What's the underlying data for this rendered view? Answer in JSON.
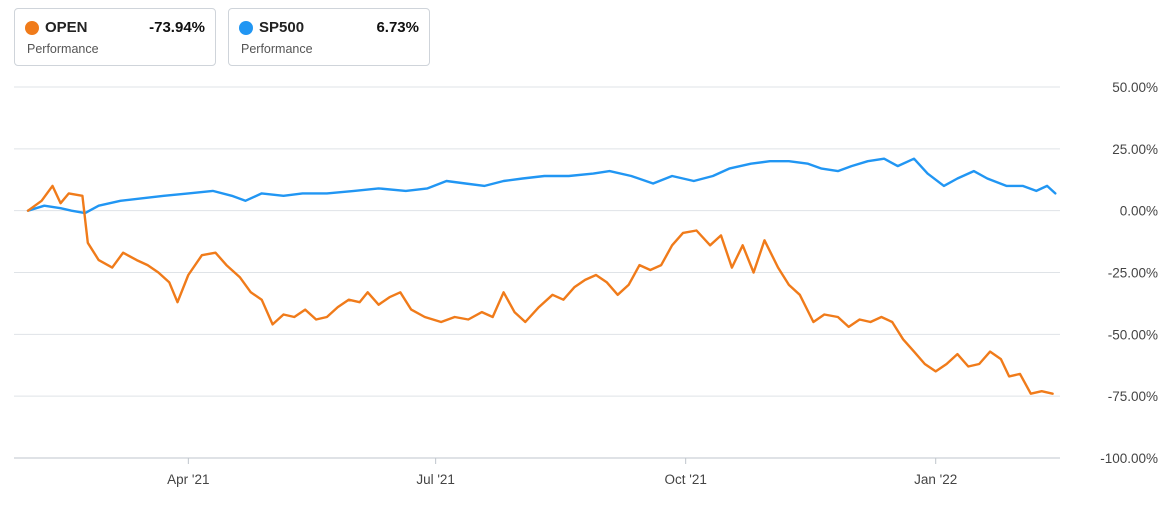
{
  "legend": [
    {
      "name": "OPEN",
      "value": "-73.94%",
      "subtitle": "Performance",
      "color": "#f07b1a"
    },
    {
      "name": "SP500",
      "value": "6.73%",
      "subtitle": "Performance",
      "color": "#2196f3"
    }
  ],
  "chart_data": {
    "type": "line",
    "title": "",
    "xlabel": "",
    "ylabel": "",
    "y_axis_position": "right",
    "ylim": [
      -100,
      50
    ],
    "y_ticks": [
      50,
      25,
      0,
      -25,
      -50,
      -75,
      -100
    ],
    "y_tick_labels": [
      "50.00%",
      "25.00%",
      "0.00%",
      "-25.00%",
      "-50.00%",
      "-75.00%",
      "-100.00%"
    ],
    "x_range": [
      "2021-02-01",
      "2022-02-15"
    ],
    "x_ticks": [
      "2021-04-01",
      "2021-07-01",
      "2021-10-01",
      "2022-01-01"
    ],
    "x_tick_labels": [
      "Apr '21",
      "Jul '21",
      "Oct '21",
      "Jan '22"
    ],
    "grid": true,
    "series": [
      {
        "name": "OPEN",
        "color": "#f07b1a",
        "points": [
          [
            "2021-02-01",
            0
          ],
          [
            "2021-02-06",
            4
          ],
          [
            "2021-02-10",
            10
          ],
          [
            "2021-02-13",
            3
          ],
          [
            "2021-02-16",
            7
          ],
          [
            "2021-02-21",
            6
          ],
          [
            "2021-02-23",
            -13
          ],
          [
            "2021-02-27",
            -20
          ],
          [
            "2021-03-04",
            -23
          ],
          [
            "2021-03-08",
            -17
          ],
          [
            "2021-03-13",
            -20
          ],
          [
            "2021-03-17",
            -22
          ],
          [
            "2021-03-21",
            -25
          ],
          [
            "2021-03-25",
            -29
          ],
          [
            "2021-03-28",
            -37
          ],
          [
            "2021-04-01",
            -26
          ],
          [
            "2021-04-06",
            -18
          ],
          [
            "2021-04-11",
            -17
          ],
          [
            "2021-04-15",
            -22
          ],
          [
            "2021-04-20",
            -27
          ],
          [
            "2021-04-24",
            -33
          ],
          [
            "2021-04-28",
            -36
          ],
          [
            "2021-05-02",
            -46
          ],
          [
            "2021-05-06",
            -42
          ],
          [
            "2021-05-10",
            -43
          ],
          [
            "2021-05-14",
            -40
          ],
          [
            "2021-05-18",
            -44
          ],
          [
            "2021-05-22",
            -43
          ],
          [
            "2021-05-26",
            -39
          ],
          [
            "2021-05-30",
            -36
          ],
          [
            "2021-06-03",
            -37
          ],
          [
            "2021-06-06",
            -33
          ],
          [
            "2021-06-10",
            -38
          ],
          [
            "2021-06-14",
            -35
          ],
          [
            "2021-06-18",
            -33
          ],
          [
            "2021-06-22",
            -40
          ],
          [
            "2021-06-27",
            -43
          ],
          [
            "2021-07-03",
            -45
          ],
          [
            "2021-07-08",
            -43
          ],
          [
            "2021-07-13",
            -44
          ],
          [
            "2021-07-18",
            -41
          ],
          [
            "2021-07-22",
            -43
          ],
          [
            "2021-07-26",
            -33
          ],
          [
            "2021-07-30",
            -41
          ],
          [
            "2021-08-03",
            -45
          ],
          [
            "2021-08-08",
            -39
          ],
          [
            "2021-08-13",
            -34
          ],
          [
            "2021-08-17",
            -36
          ],
          [
            "2021-08-21",
            -31
          ],
          [
            "2021-08-25",
            -28
          ],
          [
            "2021-08-29",
            -26
          ],
          [
            "2021-09-02",
            -29
          ],
          [
            "2021-09-06",
            -34
          ],
          [
            "2021-09-10",
            -30
          ],
          [
            "2021-09-14",
            -22
          ],
          [
            "2021-09-18",
            -24
          ],
          [
            "2021-09-22",
            -22
          ],
          [
            "2021-09-26",
            -14
          ],
          [
            "2021-09-30",
            -9
          ],
          [
            "2021-10-05",
            -8
          ],
          [
            "2021-10-10",
            -14
          ],
          [
            "2021-10-14",
            -10
          ],
          [
            "2021-10-18",
            -23
          ],
          [
            "2021-10-22",
            -14
          ],
          [
            "2021-10-26",
            -25
          ],
          [
            "2021-10-30",
            -12
          ],
          [
            "2021-11-04",
            -23
          ],
          [
            "2021-11-08",
            -30
          ],
          [
            "2021-11-12",
            -34
          ],
          [
            "2021-11-17",
            -45
          ],
          [
            "2021-11-21",
            -42
          ],
          [
            "2021-11-26",
            -43
          ],
          [
            "2021-11-30",
            -47
          ],
          [
            "2021-12-04",
            -44
          ],
          [
            "2021-12-08",
            -45
          ],
          [
            "2021-12-12",
            -43
          ],
          [
            "2021-12-16",
            -45
          ],
          [
            "2021-12-20",
            -52
          ],
          [
            "2021-12-24",
            -57
          ],
          [
            "2021-12-28",
            -62
          ],
          [
            "2022-01-01",
            -65
          ],
          [
            "2022-01-05",
            -62
          ],
          [
            "2022-01-09",
            -58
          ],
          [
            "2022-01-13",
            -63
          ],
          [
            "2022-01-17",
            -62
          ],
          [
            "2022-01-21",
            -57
          ],
          [
            "2022-01-25",
            -60
          ],
          [
            "2022-01-28",
            -67
          ],
          [
            "2022-02-01",
            -66
          ],
          [
            "2022-02-05",
            -74
          ],
          [
            "2022-02-09",
            -73
          ],
          [
            "2022-02-13",
            -74
          ]
        ]
      },
      {
        "name": "SP500",
        "color": "#2196f3",
        "points": [
          [
            "2021-02-01",
            0
          ],
          [
            "2021-02-07",
            2
          ],
          [
            "2021-02-13",
            1
          ],
          [
            "2021-02-17",
            0
          ],
          [
            "2021-02-22",
            -1
          ],
          [
            "2021-02-27",
            2
          ],
          [
            "2021-03-07",
            4
          ],
          [
            "2021-03-15",
            5
          ],
          [
            "2021-03-23",
            6
          ],
          [
            "2021-04-01",
            7
          ],
          [
            "2021-04-10",
            8
          ],
          [
            "2021-04-17",
            6
          ],
          [
            "2021-04-22",
            4
          ],
          [
            "2021-04-28",
            7
          ],
          [
            "2021-05-06",
            6
          ],
          [
            "2021-05-13",
            7
          ],
          [
            "2021-05-22",
            7
          ],
          [
            "2021-06-01",
            8
          ],
          [
            "2021-06-10",
            9
          ],
          [
            "2021-06-20",
            8
          ],
          [
            "2021-06-28",
            9
          ],
          [
            "2021-07-05",
            12
          ],
          [
            "2021-07-12",
            11
          ],
          [
            "2021-07-19",
            10
          ],
          [
            "2021-07-26",
            12
          ],
          [
            "2021-08-02",
            13
          ],
          [
            "2021-08-10",
            14
          ],
          [
            "2021-08-19",
            14
          ],
          [
            "2021-08-28",
            15
          ],
          [
            "2021-09-03",
            16
          ],
          [
            "2021-09-11",
            14
          ],
          [
            "2021-09-19",
            11
          ],
          [
            "2021-09-26",
            14
          ],
          [
            "2021-10-04",
            12
          ],
          [
            "2021-10-11",
            14
          ],
          [
            "2021-10-17",
            17
          ],
          [
            "2021-10-25",
            19
          ],
          [
            "2021-11-01",
            20
          ],
          [
            "2021-11-08",
            20
          ],
          [
            "2021-11-15",
            19
          ],
          [
            "2021-11-20",
            17
          ],
          [
            "2021-11-26",
            16
          ],
          [
            "2021-12-01",
            18
          ],
          [
            "2021-12-07",
            20
          ],
          [
            "2021-12-13",
            21
          ],
          [
            "2021-12-18",
            18
          ],
          [
            "2021-12-24",
            21
          ],
          [
            "2021-12-29",
            15
          ],
          [
            "2022-01-04",
            10
          ],
          [
            "2022-01-09",
            13
          ],
          [
            "2022-01-15",
            16
          ],
          [
            "2022-01-20",
            13
          ],
          [
            "2022-01-27",
            10
          ],
          [
            "2022-02-02",
            10
          ],
          [
            "2022-02-07",
            8
          ],
          [
            "2022-02-11",
            10
          ],
          [
            "2022-02-14",
            7
          ]
        ]
      }
    ]
  }
}
